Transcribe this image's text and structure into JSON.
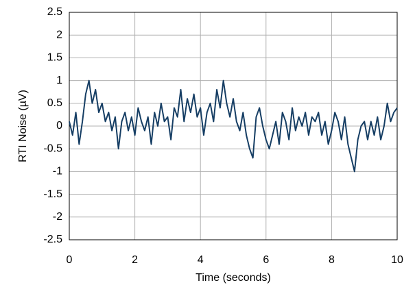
{
  "chart_data": {
    "type": "line",
    "x_label": "Time (seconds)",
    "y_label": "RTI Noise (µV)",
    "x": [
      0,
      0.1,
      0.2,
      0.3,
      0.4,
      0.5,
      0.6,
      0.7,
      0.8,
      0.9,
      1,
      1.1,
      1.2,
      1.3,
      1.4,
      1.5,
      1.6,
      1.7,
      1.8,
      1.9,
      2,
      2.1,
      2.2,
      2.3,
      2.4,
      2.5,
      2.6,
      2.7,
      2.8,
      2.9,
      3,
      3.1,
      3.2,
      3.3,
      3.4,
      3.5,
      3.6,
      3.7,
      3.8,
      3.9,
      4,
      4.1,
      4.2,
      4.3,
      4.4,
      4.5,
      4.6,
      4.7,
      4.8,
      4.9,
      5,
      5.1,
      5.2,
      5.3,
      5.4,
      5.5,
      5.6,
      5.7,
      5.8,
      5.9,
      6,
      6.1,
      6.2,
      6.3,
      6.4,
      6.5,
      6.6,
      6.7,
      6.8,
      6.9,
      7,
      7.1,
      7.2,
      7.3,
      7.4,
      7.5,
      7.6,
      7.7,
      7.8,
      7.9,
      8,
      8.1,
      8.2,
      8.3,
      8.4,
      8.5,
      8.6,
      8.7,
      8.8,
      8.9,
      9,
      9.1,
      9.2,
      9.3,
      9.4,
      9.5,
      9.6,
      9.7,
      9.8,
      9.9,
      10
    ],
    "series": [
      {
        "color": "#163e64",
        "values": [
          0.1,
          -0.2,
          0.3,
          -0.4,
          0.1,
          0.7,
          1.0,
          0.5,
          0.8,
          0.3,
          0.5,
          0.1,
          0.3,
          -0.1,
          0.2,
          -0.5,
          0.1,
          0.3,
          -0.1,
          0.2,
          -0.2,
          0.4,
          0.1,
          -0.1,
          0.2,
          -0.4,
          0.3,
          0.0,
          0.5,
          0.1,
          0.2,
          -0.3,
          0.4,
          0.2,
          0.8,
          0.1,
          0.6,
          0.3,
          0.7,
          0.2,
          0.4,
          -0.2,
          0.3,
          0.5,
          0.1,
          0.8,
          0.4,
          1.0,
          0.5,
          0.2,
          0.6,
          0.1,
          -0.1,
          0.3,
          -0.2,
          -0.5,
          -0.7,
          0.2,
          0.4,
          0.0,
          -0.3,
          -0.5,
          -0.2,
          0.1,
          -0.4,
          0.3,
          0.1,
          -0.3,
          0.4,
          -0.1,
          0.2,
          0.0,
          0.3,
          -0.2,
          0.2,
          0.1,
          0.3,
          -0.2,
          0.1,
          -0.4,
          -0.1,
          0.3,
          0.1,
          -0.3,
          0.2,
          -0.4,
          -0.7,
          -1.0,
          -0.3,
          0.0,
          0.1,
          -0.3,
          0.1,
          -0.2,
          0.2,
          -0.3,
          0.0,
          0.5,
          0.1,
          0.3,
          0.4
        ]
      }
    ],
    "xlim": [
      0,
      10
    ],
    "xticks": [
      0,
      2,
      4,
      6,
      8,
      10
    ],
    "ylim": [
      -2.5,
      2.5
    ],
    "yticks": [
      2.5,
      2,
      1.5,
      1,
      0.5,
      0,
      -0.5,
      -1,
      -1.5,
      -2,
      -2.5
    ],
    "grid": true
  }
}
